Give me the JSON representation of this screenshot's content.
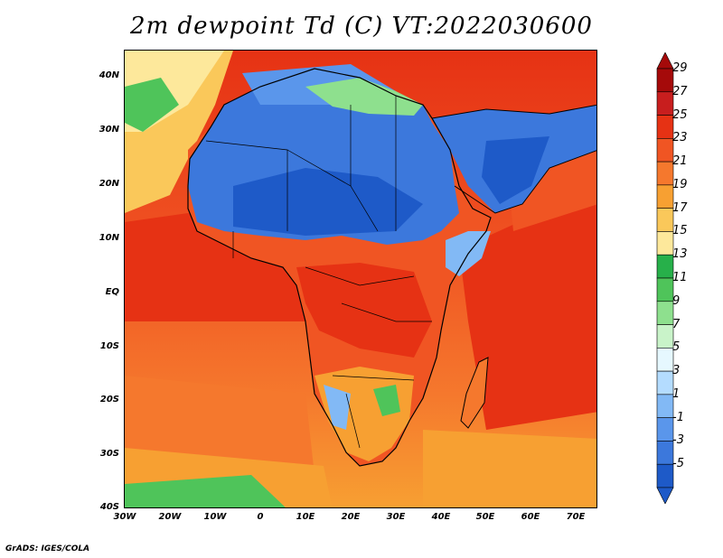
{
  "title": "2m dewpoint Td (C) VT:2022030600",
  "credit": "GrADS: IGES/COLA",
  "y_axis_labels": [
    "40N",
    "30N",
    "20N",
    "10N",
    "EQ",
    "10S",
    "20S",
    "30S",
    "40S"
  ],
  "x_axis_labels": [
    "30W",
    "20W",
    "10W",
    "0",
    "10E",
    "20E",
    "30E",
    "40E",
    "50E",
    "60E",
    "70E"
  ],
  "colorbar": {
    "labels": [
      "29",
      "27",
      "25",
      "23",
      "21",
      "19",
      "17",
      "15",
      "13",
      "11",
      "9",
      "7",
      "5",
      "3",
      "1",
      "-1",
      "-3",
      "-5"
    ],
    "colors": [
      "#a50a0a",
      "#c81e1e",
      "#e63214",
      "#f05523",
      "#f5782d",
      "#f7a032",
      "#fac85a",
      "#fde89b",
      "#27b04a",
      "#4fc45a",
      "#8ee08e",
      "#c9f3c9",
      "#e6f8ff",
      "#b4dcff",
      "#82b9f5",
      "#5a96eb",
      "#3c78dc",
      "#1e5ac8"
    ]
  }
}
